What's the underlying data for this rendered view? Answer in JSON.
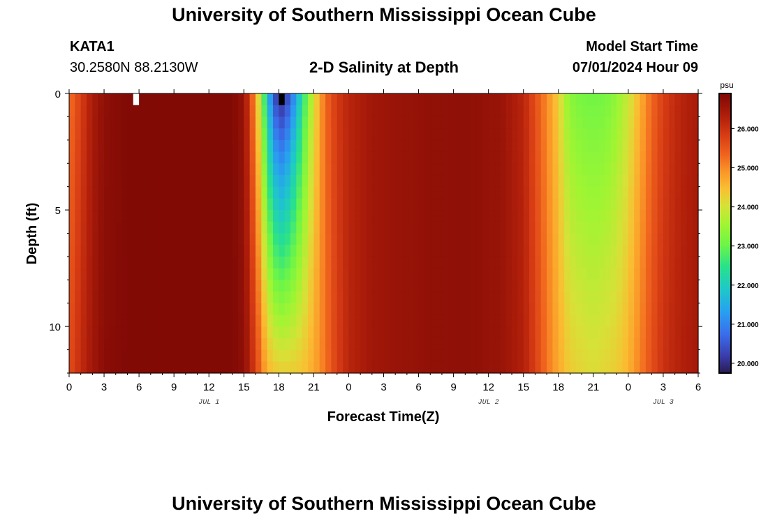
{
  "header": {
    "title": "University of Southern Mississippi Ocean Cube",
    "station_id": "KATA1",
    "coords": "30.2580N  88.2130W",
    "plot_title": "2-D Salinity at Depth",
    "model_label": "Model Start Time",
    "model_time": "07/01/2024 Hour 09"
  },
  "footer": {
    "title": "University of Southern Mississippi Ocean Cube"
  },
  "chart_data": {
    "type": "heatmap",
    "title": "2-D Salinity at Depth",
    "xlabel": "Forecast Time(Z)",
    "ylabel": "Depth (ft)",
    "x_unit": "hours since model start (07/01/2024 Hour 09 = 9 h on Jul 1)",
    "xlim": [
      0,
      54
    ],
    "ylim": [
      0,
      12
    ],
    "x_ticks": [
      0,
      3,
      6,
      9,
      12,
      15,
      18,
      21,
      24,
      27,
      30,
      33,
      36,
      39,
      42,
      45,
      48,
      51,
      54
    ],
    "x_tick_labels": [
      "0",
      "3",
      "6",
      "9",
      "12",
      "15",
      "18",
      "21",
      "0",
      "3",
      "6",
      "9",
      "12",
      "15",
      "18",
      "21",
      "0",
      "3",
      "6"
    ],
    "y_ticks": [
      0,
      5,
      10
    ],
    "y_tick_labels": [
      "0",
      "5",
      "10"
    ],
    "date_labels": [
      {
        "label": "JUL 1",
        "x": 12
      },
      {
        "label": "JUL 2",
        "x": 36
      },
      {
        "label": "JUL 3",
        "x": 51
      }
    ],
    "colorbar": {
      "unit": "psu",
      "min": 19.75,
      "max": 26.9,
      "ticks": [
        20.0,
        21.0,
        22.0,
        23.0,
        24.0,
        25.0,
        26.0
      ],
      "tick_labels": [
        "20.000",
        "21.000",
        "22.000",
        "23.000",
        "24.000",
        "25.000",
        "26.000"
      ]
    },
    "grid": false,
    "surface_profile_psu": [
      {
        "t": 0,
        "v": 25.2
      },
      {
        "t": 1,
        "v": 25.8
      },
      {
        "t": 2,
        "v": 26.4
      },
      {
        "t": 3,
        "v": 26.7
      },
      {
        "t": 5,
        "v": 26.85
      },
      {
        "t": 14,
        "v": 26.85
      },
      {
        "t": 15,
        "v": 26.6
      },
      {
        "t": 15.5,
        "v": 25.8
      },
      {
        "t": 16,
        "v": 24.8
      },
      {
        "t": 16.5,
        "v": 23.5
      },
      {
        "t": 17,
        "v": 21.8
      },
      {
        "t": 17.5,
        "v": 20.6
      },
      {
        "t": 18,
        "v": 19.8
      },
      {
        "t": 18.5,
        "v": 20.0
      },
      {
        "t": 19,
        "v": 20.6
      },
      {
        "t": 19.5,
        "v": 21.4
      },
      {
        "t": 20,
        "v": 22.3
      },
      {
        "t": 20.5,
        "v": 23.2
      },
      {
        "t": 21,
        "v": 24.0
      },
      {
        "t": 21.5,
        "v": 24.7
      },
      {
        "t": 22,
        "v": 25.3
      },
      {
        "t": 23,
        "v": 25.9
      },
      {
        "t": 24,
        "v": 26.2
      },
      {
        "t": 26,
        "v": 26.5
      },
      {
        "t": 30,
        "v": 26.65
      },
      {
        "t": 34,
        "v": 26.7
      },
      {
        "t": 37,
        "v": 26.6
      },
      {
        "t": 39,
        "v": 26.2
      },
      {
        "t": 40,
        "v": 25.6
      },
      {
        "t": 41,
        "v": 25.0
      },
      {
        "t": 42,
        "v": 24.3
      },
      {
        "t": 42.5,
        "v": 23.7
      },
      {
        "t": 43,
        "v": 23.3
      },
      {
        "t": 44,
        "v": 23.1
      },
      {
        "t": 45,
        "v": 23.05
      },
      {
        "t": 46,
        "v": 23.1
      },
      {
        "t": 47,
        "v": 23.4
      },
      {
        "t": 48,
        "v": 23.9
      },
      {
        "t": 49,
        "v": 24.6
      },
      {
        "t": 50,
        "v": 25.3
      },
      {
        "t": 51,
        "v": 25.8
      },
      {
        "t": 52,
        "v": 26.1
      },
      {
        "t": 53,
        "v": 26.3
      },
      {
        "t": 54,
        "v": 26.4
      }
    ],
    "bottom_profile_psu": [
      {
        "t": 0,
        "v": 25.6
      },
      {
        "t": 1,
        "v": 26.1
      },
      {
        "t": 2,
        "v": 26.5
      },
      {
        "t": 3,
        "v": 26.75
      },
      {
        "t": 5,
        "v": 26.85
      },
      {
        "t": 14,
        "v": 26.85
      },
      {
        "t": 15,
        "v": 26.7
      },
      {
        "t": 15.5,
        "v": 26.3
      },
      {
        "t": 16,
        "v": 25.8
      },
      {
        "t": 16.5,
        "v": 25.2
      },
      {
        "t": 17,
        "v": 24.6
      },
      {
        "t": 18,
        "v": 24.3
      },
      {
        "t": 19,
        "v": 24.3
      },
      {
        "t": 20,
        "v": 24.4
      },
      {
        "t": 21,
        "v": 24.7
      },
      {
        "t": 22,
        "v": 25.2
      },
      {
        "t": 23,
        "v": 25.8
      },
      {
        "t": 24,
        "v": 26.2
      },
      {
        "t": 26,
        "v": 26.5
      },
      {
        "t": 30,
        "v": 26.65
      },
      {
        "t": 34,
        "v": 26.7
      },
      {
        "t": 37,
        "v": 26.6
      },
      {
        "t": 39,
        "v": 26.3
      },
      {
        "t": 40,
        "v": 25.8
      },
      {
        "t": 41,
        "v": 25.2
      },
      {
        "t": 42,
        "v": 24.7
      },
      {
        "t": 43,
        "v": 24.3
      },
      {
        "t": 45,
        "v": 24.1
      },
      {
        "t": 47,
        "v": 24.3
      },
      {
        "t": 48,
        "v": 24.6
      },
      {
        "t": 49,
        "v": 25.1
      },
      {
        "t": 50,
        "v": 25.6
      },
      {
        "t": 51,
        "v": 26.0
      },
      {
        "t": 52,
        "v": 26.2
      },
      {
        "t": 53,
        "v": 26.35
      },
      {
        "t": 54,
        "v": 26.45
      }
    ],
    "missing_cells": [
      {
        "t": 5.5,
        "depth_from": 0,
        "depth_to": 0.5,
        "color": "#ffffff"
      },
      {
        "t": 18,
        "depth_from": 0,
        "depth_to": 0.5,
        "color": "#000000"
      }
    ]
  }
}
